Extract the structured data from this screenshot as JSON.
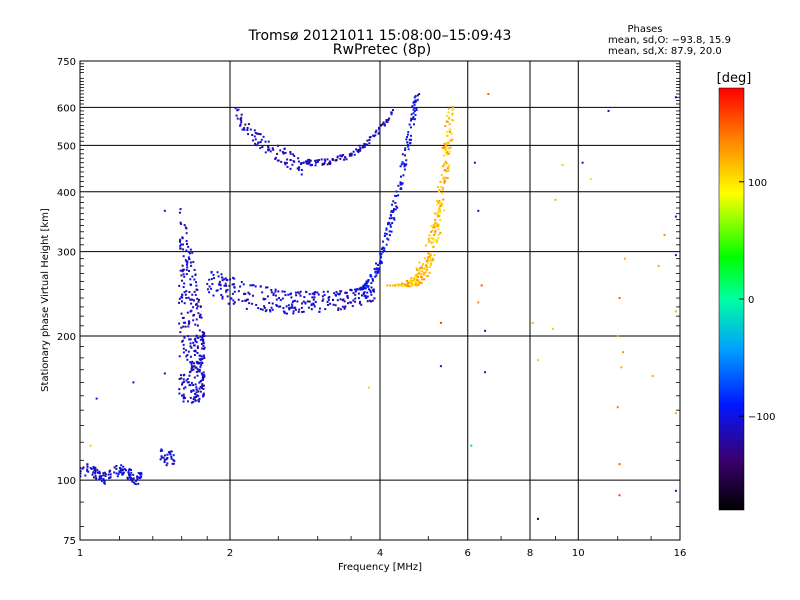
{
  "header": {
    "title_line1": "Tromsø 20121011 15:08:00–15:09:43",
    "title_line2": "RwPretec (8p)"
  },
  "stats": {
    "heading": "Phases",
    "line_o": "mean, sd,O: −93.8, 15.9",
    "line_x": "mean, sd,X:  87.9, 20.0"
  },
  "colorbar": {
    "unit_label": "[deg]",
    "ticks": [
      {
        "value": 100,
        "label": "100"
      },
      {
        "value": 0,
        "label": "0"
      },
      {
        "value": -100,
        "label": "−100"
      }
    ],
    "range": [
      -180,
      180
    ]
  },
  "chart_data": {
    "type": "scatter",
    "title": "Tromsø 20121011 15:08:00–15:09:43",
    "subtitle": "RwPretec (8p)",
    "xlabel": "Frequency [MHz]",
    "ylabel": "Stationary phase Virtual Height [km]",
    "x_scale": "log",
    "y_scale": "log",
    "xlim": [
      1,
      16
    ],
    "ylim": [
      75,
      750
    ],
    "x_ticks": [
      {
        "value": 1,
        "label": "1"
      },
      {
        "value": 2,
        "label": "2"
      },
      {
        "value": 4,
        "label": "4"
      },
      {
        "value": 6,
        "label": "6"
      },
      {
        "value": 8,
        "label": "8"
      },
      {
        "value": 10,
        "label": "10"
      },
      {
        "value": 16,
        "label": "16"
      }
    ],
    "y_ticks": [
      {
        "value": 75,
        "label": "75"
      },
      {
        "value": 100,
        "label": "100"
      },
      {
        "value": 200,
        "label": "200"
      },
      {
        "value": 300,
        "label": "300"
      },
      {
        "value": 400,
        "label": "400"
      },
      {
        "value": 500,
        "label": "500"
      },
      {
        "value": 600,
        "label": "600"
      },
      {
        "value": 750,
        "label": "750"
      }
    ],
    "x_gridlines": [
      2,
      4,
      6,
      8,
      10
    ],
    "y_gridlines": [
      100,
      200,
      300,
      400,
      500,
      600
    ],
    "color_axis": "Phase [deg]",
    "grid": true,
    "clusters": [
      {
        "name": "Es trace",
        "n": 120,
        "x0": 1.0,
        "x1": 1.33,
        "y": 103,
        "yspread": 3,
        "phase": -105
      },
      {
        "name": "Es tail",
        "n": 30,
        "x0": 1.45,
        "x1": 1.55,
        "y": 112,
        "yspread": 3,
        "phase": -105
      },
      {
        "name": "F1 column",
        "n": 320,
        "x0": 1.58,
        "x1": 1.78,
        "y0": 145,
        "y1": 400,
        "phase": -110
      },
      {
        "name": "F layer O-mode",
        "n": 280,
        "x0": 1.8,
        "x1": 3.9,
        "y": 240,
        "yspread": 18,
        "phase": -110
      },
      {
        "name": "F2 O-mode rising",
        "n": 200,
        "x0": 3.6,
        "x1": 4.75,
        "y0": 250,
        "y1": 640,
        "phase": -100
      },
      {
        "name": "F2 X-mode",
        "n": 260,
        "x0": 4.1,
        "x1": 5.55,
        "y0": 255,
        "y1": 560,
        "phase": 115
      },
      {
        "name": "Multiple-hop lower",
        "n": 90,
        "x0": 2.05,
        "x1": 2.8,
        "y0": 450,
        "y1": 610,
        "phase": -110
      },
      {
        "name": "Multiple-hop upper",
        "n": 110,
        "x0": 2.8,
        "x1": 4.3,
        "y0": 460,
        "y1": 600,
        "phase": -115
      }
    ],
    "scattered_points": [
      {
        "x": 6.6,
        "y": 640,
        "phase": 150
      },
      {
        "x": 11.5,
        "y": 590,
        "phase": -120
      },
      {
        "x": 15.7,
        "y": 630,
        "phase": -110
      },
      {
        "x": 9.3,
        "y": 455,
        "phase": 110
      },
      {
        "x": 10.2,
        "y": 460,
        "phase": -110
      },
      {
        "x": 6.2,
        "y": 460,
        "phase": -110
      },
      {
        "x": 10.6,
        "y": 425,
        "phase": 100
      },
      {
        "x": 9.0,
        "y": 385,
        "phase": 120
      },
      {
        "x": 6.3,
        "y": 365,
        "phase": -100
      },
      {
        "x": 15.7,
        "y": 355,
        "phase": -110
      },
      {
        "x": 14.9,
        "y": 325,
        "phase": 130
      },
      {
        "x": 15.7,
        "y": 295,
        "phase": -110
      },
      {
        "x": 12.4,
        "y": 290,
        "phase": 120
      },
      {
        "x": 14.5,
        "y": 280,
        "phase": 120
      },
      {
        "x": 6.4,
        "y": 255,
        "phase": 150
      },
      {
        "x": 12.1,
        "y": 240,
        "phase": 150
      },
      {
        "x": 6.3,
        "y": 235,
        "phase": 130
      },
      {
        "x": 15.7,
        "y": 225,
        "phase": 120
      },
      {
        "x": 5.3,
        "y": 213,
        "phase": 160
      },
      {
        "x": 8.1,
        "y": 213,
        "phase": 120
      },
      {
        "x": 8.9,
        "y": 207,
        "phase": 110
      },
      {
        "x": 6.5,
        "y": 205,
        "phase": -100
      },
      {
        "x": 12.0,
        "y": 200,
        "phase": 120
      },
      {
        "x": 12.3,
        "y": 185,
        "phase": 130
      },
      {
        "x": 14.1,
        "y": 165,
        "phase": 120
      },
      {
        "x": 12.2,
        "y": 172,
        "phase": 120
      },
      {
        "x": 5.3,
        "y": 173,
        "phase": -100
      },
      {
        "x": 8.3,
        "y": 178,
        "phase": 110
      },
      {
        "x": 6.5,
        "y": 168,
        "phase": -100
      },
      {
        "x": 3.8,
        "y": 156,
        "phase": 110
      },
      {
        "x": 12.0,
        "y": 142,
        "phase": 140
      },
      {
        "x": 15.7,
        "y": 138,
        "phase": 120
      },
      {
        "x": 6.1,
        "y": 118,
        "phase": -20
      },
      {
        "x": 12.1,
        "y": 108,
        "phase": 150
      },
      {
        "x": 15.7,
        "y": 95,
        "phase": -100
      },
      {
        "x": 12.1,
        "y": 93,
        "phase": 160
      },
      {
        "x": 8.3,
        "y": 83,
        "phase": -150
      },
      {
        "x": 1.08,
        "y": 148,
        "phase": -90
      },
      {
        "x": 1.05,
        "y": 118,
        "phase": 110
      },
      {
        "x": 1.28,
        "y": 160,
        "phase": -110
      },
      {
        "x": 1.48,
        "y": 167,
        "phase": -105
      },
      {
        "x": 1.48,
        "y": 365,
        "phase": -110
      }
    ]
  }
}
